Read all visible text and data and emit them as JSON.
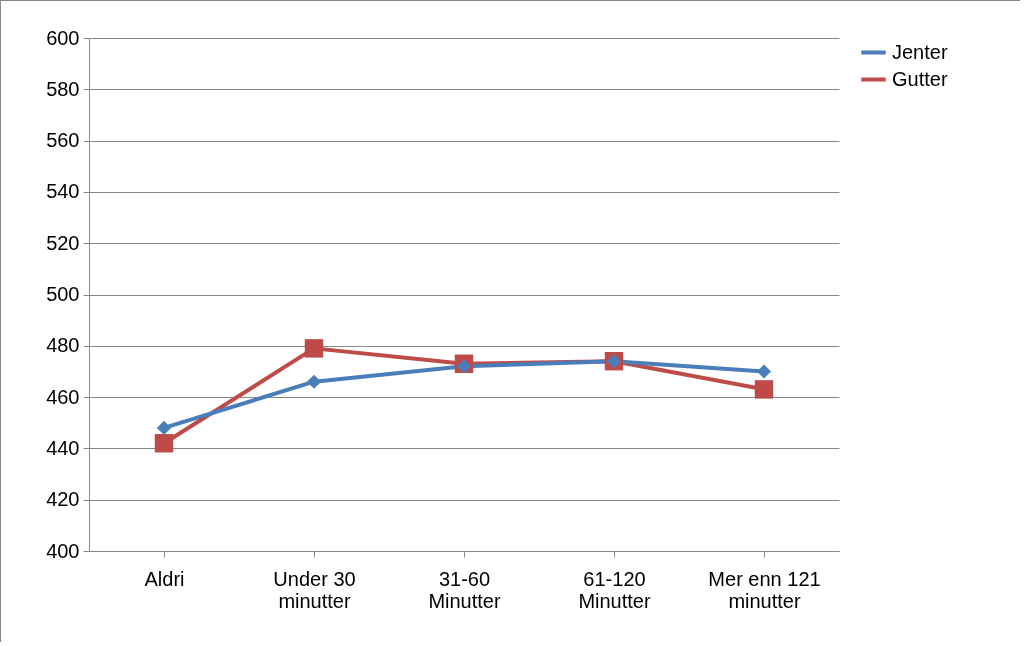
{
  "chart_data": {
    "type": "line",
    "categories": [
      "Aldri",
      "Under 30 minutter",
      "31-60 Minutter",
      "61-120 Minutter",
      "Mer enn 121 minutter"
    ],
    "series": [
      {
        "name": "Jenter",
        "color": "#4a7ebb",
        "marker": "diamond",
        "values": [
          448,
          466,
          472,
          474,
          470
        ]
      },
      {
        "name": "Gutter",
        "color": "#be4b48",
        "marker": "square",
        "values": [
          442,
          479,
          473,
          474,
          463
        ]
      }
    ],
    "ylim": [
      400,
      600
    ],
    "yticks": [
      400,
      420,
      440,
      460,
      480,
      500,
      520,
      540,
      560,
      580,
      600
    ],
    "grid": "y",
    "legend": "right",
    "line_style": "solid"
  }
}
